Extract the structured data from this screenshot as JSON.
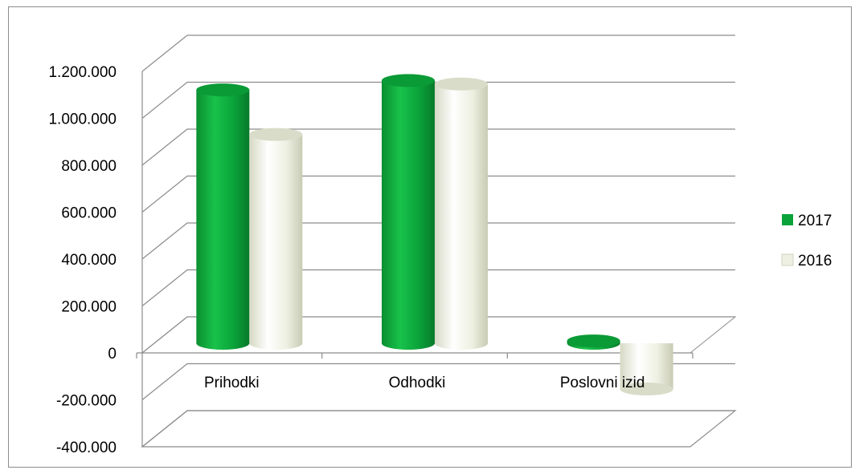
{
  "chart_data": {
    "type": "bar",
    "title": "",
    "xlabel": "",
    "ylabel": "",
    "categories": [
      "Prihodki",
      "Odhodki",
      "Poslovni izid"
    ],
    "series": [
      {
        "name": "2017",
        "color": "#0aa33a",
        "values": [
          1080000,
          1120000,
          10000
        ]
      },
      {
        "name": "2016",
        "color": "#eef0e2",
        "values": [
          890000,
          1105000,
          -195000
        ]
      }
    ],
    "yticks": [
      "1.200.000",
      "1.000.000",
      "800.000",
      "600.000",
      "400.000",
      "200.000",
      "0",
      "-200.000",
      "-400.000"
    ],
    "ylim": [
      -400000,
      1200000
    ],
    "grid": true,
    "legend_position": "right"
  }
}
